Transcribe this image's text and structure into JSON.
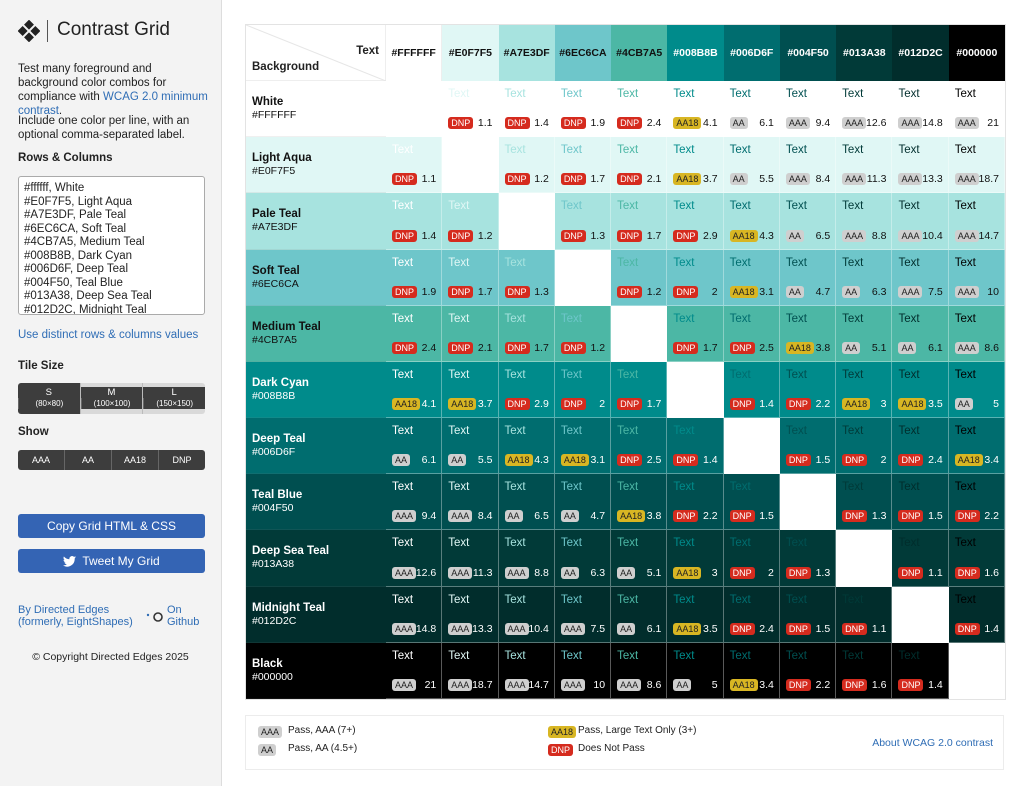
{
  "sidebar": {
    "title": "Contrast Grid",
    "intro": "Test many foreground and background color combos for compliance with",
    "intro_link": "WCAG 2.0 minimum contrast",
    "intro_end": ".",
    "instructions": "Include one color per line, with an optional comma-separated label.",
    "rows_columns_label": "Rows & Columns",
    "textarea_lines": [
      "#ffffff, White",
      "#E0F7F5, Light Aqua",
      "#A7E3DF, Pale Teal",
      "#6EC6CA, Soft Teal",
      "#4CB7A5, Medium Teal",
      "#008B8B, Dark Cyan",
      "#006D6F, Deep Teal",
      "#004F50, Teal Blue",
      "#013A38, Deep Sea Teal",
      "#012D2C, Midnight Teal"
    ],
    "distinct_link": "Use distinct rows & columns values",
    "tile_size_label": "Tile Size",
    "tile_sizes": [
      {
        "label": "S",
        "size": "(80×80)"
      },
      {
        "label": "M",
        "size": "(100×100)"
      },
      {
        "label": "L",
        "size": "(150×150)"
      }
    ],
    "show_label": "Show",
    "show_options": [
      "AAA",
      "AA",
      "AA18",
      "DNP"
    ],
    "copy_button": "Copy Grid HTML & CSS",
    "tweet_button": "Tweet My Grid",
    "by_link": "By Directed Edges (formerly, EightShapes)",
    "github_link": "On Github",
    "copyright": "© Copyright Directed Edges 2025"
  },
  "grid": {
    "corner_text": "Text",
    "corner_background": "Background",
    "sample_text": "Text",
    "colors": [
      {
        "name": "White",
        "hex": "#FFFFFF"
      },
      {
        "name": "Light Aqua",
        "hex": "#E0F7F5"
      },
      {
        "name": "Pale Teal",
        "hex": "#A7E3DF"
      },
      {
        "name": "Soft Teal",
        "hex": "#6EC6CA"
      },
      {
        "name": "Medium Teal",
        "hex": "#4CB7A5"
      },
      {
        "name": "Dark Cyan",
        "hex": "#008B8B"
      },
      {
        "name": "Deep Teal",
        "hex": "#006D6F"
      },
      {
        "name": "Teal Blue",
        "hex": "#004F50"
      },
      {
        "name": "Deep Sea Teal",
        "hex": "#013A38"
      },
      {
        "name": "Midnight Teal",
        "hex": "#012D2C"
      },
      {
        "name": "Black",
        "hex": "#000000"
      }
    ],
    "rows": [
      {
        "ratios": [
          null,
          1.1,
          1.4,
          1.9,
          2.4,
          4.1,
          6.1,
          9.4,
          12.6,
          14.8,
          21
        ],
        "badges": [
          null,
          "DNP",
          "DNP",
          "DNP",
          "DNP",
          "AA18",
          "AA",
          "AAA",
          "AAA",
          "AAA",
          "AAA"
        ]
      },
      {
        "ratios": [
          1.1,
          null,
          1.2,
          1.7,
          2.1,
          3.7,
          5.5,
          8.4,
          11.3,
          13.3,
          18.7
        ],
        "badges": [
          "DNP",
          null,
          "DNP",
          "DNP",
          "DNP",
          "AA18",
          "AA",
          "AAA",
          "AAA",
          "AAA",
          "AAA"
        ]
      },
      {
        "ratios": [
          1.4,
          1.2,
          null,
          1.3,
          1.7,
          2.9,
          4.3,
          6.5,
          8.8,
          10.4,
          14.7
        ],
        "badges": [
          "DNP",
          "DNP",
          null,
          "DNP",
          "DNP",
          "DNP",
          "AA18",
          "AA",
          "AAA",
          "AAA",
          "AAA"
        ]
      },
      {
        "ratios": [
          1.9,
          1.7,
          1.3,
          null,
          1.2,
          2,
          3.1,
          4.7,
          6.3,
          7.5,
          10
        ],
        "badges": [
          "DNP",
          "DNP",
          "DNP",
          null,
          "DNP",
          "DNP",
          "AA18",
          "AA",
          "AA",
          "AAA",
          "AAA"
        ]
      },
      {
        "ratios": [
          2.4,
          2.1,
          1.7,
          1.2,
          null,
          1.7,
          2.5,
          3.8,
          5.1,
          6.1,
          8.6
        ],
        "badges": [
          "DNP",
          "DNP",
          "DNP",
          "DNP",
          null,
          "DNP",
          "DNP",
          "AA18",
          "AA",
          "AA",
          "AAA"
        ]
      },
      {
        "ratios": [
          4.1,
          3.7,
          2.9,
          2,
          1.7,
          null,
          1.4,
          2.2,
          3,
          3.5,
          5
        ],
        "badges": [
          "AA18",
          "AA18",
          "DNP",
          "DNP",
          "DNP",
          null,
          "DNP",
          "DNP",
          "AA18",
          "AA18",
          "AA"
        ]
      },
      {
        "ratios": [
          6.1,
          5.5,
          4.3,
          3.1,
          2.5,
          1.4,
          null,
          1.5,
          2,
          2.4,
          3.4
        ],
        "badges": [
          "AA",
          "AA",
          "AA18",
          "AA18",
          "DNP",
          "DNP",
          null,
          "DNP",
          "DNP",
          "DNP",
          "AA18"
        ]
      },
      {
        "ratios": [
          9.4,
          8.4,
          6.5,
          4.7,
          3.8,
          2.2,
          1.5,
          null,
          1.3,
          1.5,
          2.2
        ],
        "badges": [
          "AAA",
          "AAA",
          "AA",
          "AA",
          "AA18",
          "DNP",
          "DNP",
          null,
          "DNP",
          "DNP",
          "DNP"
        ]
      },
      {
        "ratios": [
          12.6,
          11.3,
          8.8,
          6.3,
          5.1,
          3,
          2,
          1.3,
          null,
          1.1,
          1.6
        ],
        "badges": [
          "AAA",
          "AAA",
          "AAA",
          "AA",
          "AA",
          "AA18",
          "DNP",
          "DNP",
          null,
          "DNP",
          "DNP"
        ]
      },
      {
        "ratios": [
          14.8,
          13.3,
          10.4,
          7.5,
          6.1,
          3.5,
          2.4,
          1.5,
          1.1,
          null,
          1.4
        ],
        "badges": [
          "AAA",
          "AAA",
          "AAA",
          "AAA",
          "AA",
          "AA18",
          "DNP",
          "DNP",
          "DNP",
          null,
          "DNP"
        ]
      },
      {
        "ratios": [
          21,
          18.7,
          14.7,
          10,
          8.6,
          5,
          3.4,
          2.2,
          1.6,
          1.4,
          null
        ],
        "badges": [
          "AAA",
          "AAA",
          "AAA",
          "AAA",
          "AAA",
          "AA",
          "AA18",
          "DNP",
          "DNP",
          "DNP",
          null
        ]
      }
    ]
  },
  "legend": {
    "items": [
      {
        "badge": "AAA",
        "label": "Pass, AAA (7+)",
        "color": "#cfcfcf",
        "text_color": "#222222"
      },
      {
        "badge": "AA",
        "label": "Pass, AA (4.5+)",
        "color": "#cfcfcf",
        "text_color": "#222222"
      },
      {
        "badge": "AA18",
        "label": "Pass, Large Text Only (3+)",
        "color": "#d8b623",
        "text_color": "#222222"
      },
      {
        "badge": "DNP",
        "label": "Does Not Pass",
        "color": "#d52b1e",
        "text_color": "#ffffff"
      }
    ],
    "about_link": "About WCAG 2.0 contrast"
  }
}
